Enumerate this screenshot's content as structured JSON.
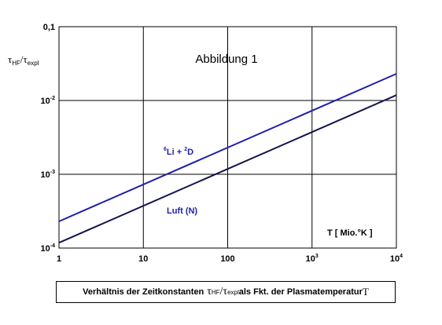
{
  "chart_data": {
    "type": "line",
    "title": "Abbildung 1",
    "x_scale": "log",
    "y_scale": "log",
    "xlim": [
      1,
      10000
    ],
    "ylim": [
      0.0001,
      0.1
    ],
    "grid": true,
    "legend": "none",
    "ylabel": {
      "tau1": "τ",
      "sub1": "HF",
      "slash": "/",
      "tau2": "τ",
      "sub2": "expl"
    },
    "x_ticks": [
      {
        "value": 1,
        "label": "1",
        "sup": ""
      },
      {
        "value": 10,
        "label": "10",
        "sup": ""
      },
      {
        "value": 100,
        "label": "100",
        "sup": ""
      },
      {
        "value": 1000,
        "label": "10",
        "sup": "3"
      },
      {
        "value": 10000,
        "label": "10",
        "sup": "4"
      }
    ],
    "y_ticks": [
      {
        "value": 0.0001,
        "label": "10",
        "sup": "-4"
      },
      {
        "value": 0.001,
        "label": "10",
        "sup": "-3"
      },
      {
        "value": 0.01,
        "label": "10",
        "sup": "-2"
      },
      {
        "value": 0.1,
        "label": "0,1",
        "sup": ""
      }
    ],
    "series": [
      {
        "name": "⁶Li + ²D",
        "color": "#1f1fa8",
        "x": [
          1,
          10000
        ],
        "y": [
          0.00023,
          0.023
        ]
      },
      {
        "name": "Luft (N)",
        "color": "#141450",
        "x": [
          1,
          10000
        ],
        "y": [
          0.000118,
          0.0118
        ]
      }
    ],
    "annotations": {
      "li_label": {
        "pre": "6",
        "a": "Li + ",
        "sup2": "2",
        "b": "D",
        "color": "#1f1fa8"
      },
      "luft_label": {
        "text": "Luft (N)",
        "color": "#1f1fa8"
      },
      "temp_label": {
        "text": "T [ Mio.°K ]"
      }
    }
  },
  "caption": {
    "pre": "Verhältnis der Zeitkonstanten ",
    "tau1": "τ",
    "sub1": "HF",
    "slash": "/",
    "tau2": "τ",
    "sub2": "expl",
    "post": " als Fkt. der Plasmatemperatur ",
    "symbol": "T"
  }
}
